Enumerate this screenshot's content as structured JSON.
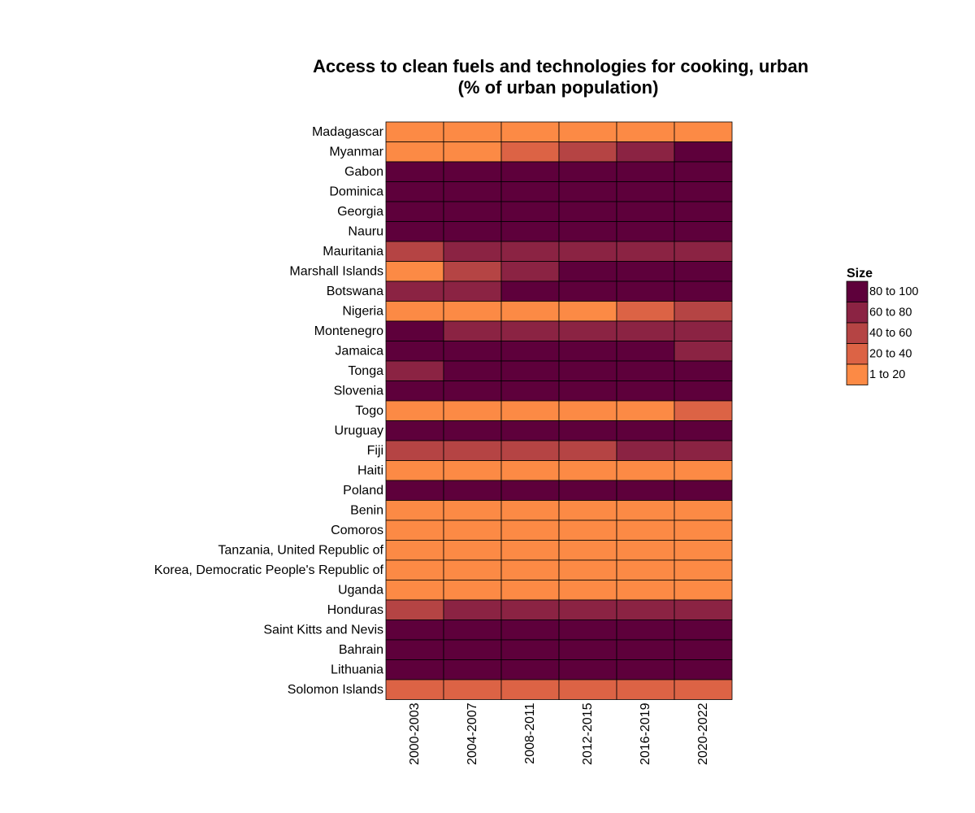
{
  "chart_data": {
    "type": "heatmap",
    "title": [
      "Access to clean fuels and technologies for cooking, urban",
      "(% of urban population)"
    ],
    "xlabel": "",
    "ylabel": "",
    "columns": [
      "2000-2003",
      "2004-2007",
      "2008-2011",
      "2012-2015",
      "2016-2019",
      "2020-2022"
    ],
    "rows": [
      "Madagascar",
      "Myanmar",
      "Gabon",
      "Dominica",
      "Georgia",
      "Nauru",
      "Mauritania",
      "Marshall Islands",
      "Botswana",
      "Nigeria",
      "Montenegro",
      "Jamaica",
      "Tonga",
      "Slovenia",
      "Togo",
      "Uruguay",
      "Fiji",
      "Haiti",
      "Poland",
      "Benin",
      "Comoros",
      "Tanzania, United Republic of",
      "Korea, Democratic People's Republic of",
      "Uganda",
      "Honduras",
      "Saint Kitts and Nevis",
      "Bahrain",
      "Lithuania",
      "Solomon Islands"
    ],
    "values": [
      [
        "1 to 20",
        "1 to 20",
        "1 to 20",
        "1 to 20",
        "1 to 20",
        "1 to 20"
      ],
      [
        "1 to 20",
        "1 to 20",
        "20 to 40",
        "40 to 60",
        "60 to 80",
        "80 to 100"
      ],
      [
        "80 to 100",
        "80 to 100",
        "80 to 100",
        "80 to 100",
        "80 to 100",
        "80 to 100"
      ],
      [
        "80 to 100",
        "80 to 100",
        "80 to 100",
        "80 to 100",
        "80 to 100",
        "80 to 100"
      ],
      [
        "80 to 100",
        "80 to 100",
        "80 to 100",
        "80 to 100",
        "80 to 100",
        "80 to 100"
      ],
      [
        "80 to 100",
        "80 to 100",
        "80 to 100",
        "80 to 100",
        "80 to 100",
        "80 to 100"
      ],
      [
        "40 to 60",
        "60 to 80",
        "60 to 80",
        "60 to 80",
        "60 to 80",
        "60 to 80"
      ],
      [
        "1 to 20",
        "40 to 60",
        "60 to 80",
        "80 to 100",
        "80 to 100",
        "80 to 100"
      ],
      [
        "60 to 80",
        "60 to 80",
        "80 to 100",
        "80 to 100",
        "80 to 100",
        "80 to 100"
      ],
      [
        "1 to 20",
        "1 to 20",
        "1 to 20",
        "1 to 20",
        "20 to 40",
        "40 to 60"
      ],
      [
        "80 to 100",
        "60 to 80",
        "60 to 80",
        "60 to 80",
        "60 to 80",
        "60 to 80"
      ],
      [
        "80 to 100",
        "80 to 100",
        "80 to 100",
        "80 to 100",
        "80 to 100",
        "60 to 80"
      ],
      [
        "60 to 80",
        "80 to 100",
        "80 to 100",
        "80 to 100",
        "80 to 100",
        "80 to 100"
      ],
      [
        "80 to 100",
        "80 to 100",
        "80 to 100",
        "80 to 100",
        "80 to 100",
        "80 to 100"
      ],
      [
        "1 to 20",
        "1 to 20",
        "1 to 20",
        "1 to 20",
        "1 to 20",
        "20 to 40"
      ],
      [
        "80 to 100",
        "80 to 100",
        "80 to 100",
        "80 to 100",
        "80 to 100",
        "80 to 100"
      ],
      [
        "40 to 60",
        "40 to 60",
        "40 to 60",
        "40 to 60",
        "60 to 80",
        "60 to 80"
      ],
      [
        "1 to 20",
        "1 to 20",
        "1 to 20",
        "1 to 20",
        "1 to 20",
        "1 to 20"
      ],
      [
        "80 to 100",
        "80 to 100",
        "80 to 100",
        "80 to 100",
        "80 to 100",
        "80 to 100"
      ],
      [
        "1 to 20",
        "1 to 20",
        "1 to 20",
        "1 to 20",
        "1 to 20",
        "1 to 20"
      ],
      [
        "1 to 20",
        "1 to 20",
        "1 to 20",
        "1 to 20",
        "1 to 20",
        "1 to 20"
      ],
      [
        "1 to 20",
        "1 to 20",
        "1 to 20",
        "1 to 20",
        "1 to 20",
        "1 to 20"
      ],
      [
        "1 to 20",
        "1 to 20",
        "1 to 20",
        "1 to 20",
        "1 to 20",
        "1 to 20"
      ],
      [
        "1 to 20",
        "1 to 20",
        "1 to 20",
        "1 to 20",
        "1 to 20",
        "1 to 20"
      ],
      [
        "40 to 60",
        "60 to 80",
        "60 to 80",
        "60 to 80",
        "60 to 80",
        "60 to 80"
      ],
      [
        "80 to 100",
        "80 to 100",
        "80 to 100",
        "80 to 100",
        "80 to 100",
        "80 to 100"
      ],
      [
        "80 to 100",
        "80 to 100",
        "80 to 100",
        "80 to 100",
        "80 to 100",
        "80 to 100"
      ],
      [
        "80 to 100",
        "80 to 100",
        "80 to 100",
        "80 to 100",
        "80 to 100",
        "80 to 100"
      ],
      [
        "20 to 40",
        "20 to 40",
        "20 to 40",
        "20 to 40",
        "20 to 40",
        "20 to 40"
      ]
    ],
    "legend": {
      "title": "Size",
      "position": "right",
      "entries": [
        {
          "label": "80 to 100",
          "color": "#5e003b"
        },
        {
          "label": "60 to 80",
          "color": "#8b2343"
        },
        {
          "label": "40 to 60",
          "color": "#b54444"
        },
        {
          "label": "20 to 40",
          "color": "#dc6345"
        },
        {
          "label": "1 to 20",
          "color": "#fc8a45"
        }
      ]
    },
    "cell_border_color": "#000000",
    "grid": false
  }
}
